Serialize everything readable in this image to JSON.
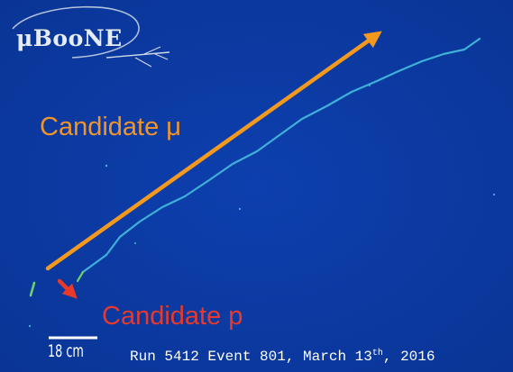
{
  "logo": {
    "text": "μBooNE"
  },
  "annotations": {
    "muon_label": "Candidate μ",
    "proton_label": "Candidate p"
  },
  "scale_bar": {
    "label": "18 cm"
  },
  "event_info": {
    "prefix": "Run 5412 Event 801, March 13",
    "suffix": "th",
    "year": ", 2016"
  },
  "colors": {
    "background": "#0b3ba3",
    "muon_arrow": "#f39a1e",
    "proton_arrow": "#e8392a",
    "track": "#3fb0d8",
    "logo": "#e6ecf5"
  }
}
